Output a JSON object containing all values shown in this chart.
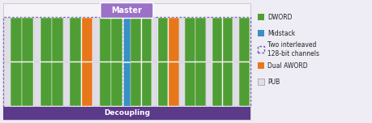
{
  "fig_width": 4.6,
  "fig_height": 1.52,
  "dpi": 100,
  "bg_color": "#eeecf4",
  "dword_color": "#4f9e35",
  "midstack_color": "#3a8fc4",
  "dual_aword_color": "#e8771a",
  "pub_color": "#e0dde8",
  "decoupling_color": "#5c3a8a",
  "decoupling_text": "Decoupling",
  "master_color": "#9b72c8",
  "master_text": "Master",
  "dashed_border_color": "#6a5aaa",
  "main_bg": "#f5f3f8",
  "main_border": "#cccccc",
  "left_blocks": [
    "pub",
    "dword",
    "dword",
    "pub",
    "dword",
    "dword",
    "pub",
    "dword",
    "dual_aword",
    "pub",
    "dword",
    "dword",
    "midstack"
  ],
  "right_blocks": [
    "dword",
    "dword",
    "pub",
    "dword",
    "dual_aword",
    "pub",
    "dword",
    "dword",
    "pub",
    "dword",
    "dword",
    "pub",
    "dword"
  ],
  "legend_items": [
    {
      "label": "DWORD",
      "color": "#4f9e35",
      "style": "solid"
    },
    {
      "label": "Midstack",
      "color": "#3a8fc4",
      "style": "solid"
    },
    {
      "label": "Two interleaved\n128-bit channels",
      "color": "#6a5aaa",
      "style": "dashed"
    },
    {
      "label": "Dual AWORD",
      "color": "#e8771a",
      "style": "solid"
    },
    {
      "label": "PUB",
      "color": "#e0dde8",
      "style": "solid"
    }
  ]
}
